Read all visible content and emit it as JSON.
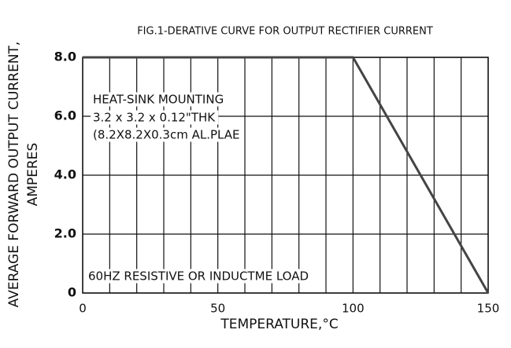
{
  "chart_data": {
    "type": "line",
    "title": "FIG.1-DERATIVE CURVE FOR OUTPUT RECTIFIER CURRENT",
    "ylabel": [
      "AVERAGE FORWARD OUTPUT CURRENT,",
      "AMPERES"
    ],
    "xlabel": "TEMPERATURE,°C",
    "x": [
      0,
      100,
      150
    ],
    "series": [
      {
        "color": "#444444",
        "values": [
          8,
          8,
          0
        ]
      }
    ],
    "xlim": [
      0,
      150
    ],
    "xticks": [
      0,
      50,
      100,
      150
    ],
    "xgrid": [
      0,
      10,
      20,
      30,
      40,
      50,
      60,
      70,
      80,
      90,
      100,
      110,
      120,
      130,
      140,
      150
    ],
    "ylim": [
      0,
      8
    ],
    "yticks": [
      {
        "value": 0,
        "label": "0"
      },
      {
        "value": 2,
        "label": "2.0"
      },
      {
        "value": 4,
        "label": "4.0"
      },
      {
        "value": 6,
        "label": "6.0"
      },
      {
        "value": 8,
        "label": "8.0"
      }
    ],
    "grid": true,
    "annotations": [
      "HEAT-SINK MOUNTING",
      "3.2 x 3.2 x 0.12\"THK",
      "(8.2X8.2X0.3cm AL.PLAE",
      "60HZ RESISTIVE OR INDUCTME LOAD"
    ]
  }
}
